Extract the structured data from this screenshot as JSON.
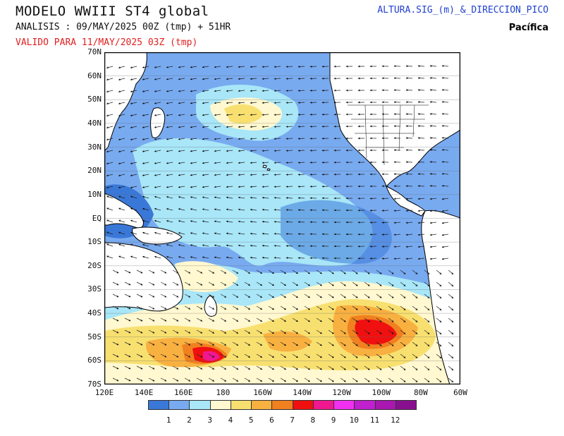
{
  "header": {
    "title": "MODELO WWIII ST4 global",
    "analysis": "ANALISIS : 09/MAY/2025 00Z  (tmp) + 51HR",
    "valid": "VALIDO PARA  11/MAY/2025 03Z  (tmp)",
    "variable": "ALTURA.SIG_(m)_&_DIRECCION_PICO",
    "region": "Pacífica"
  },
  "axes": {
    "lat_labels": [
      "70N",
      "60N",
      "50N",
      "40N",
      "30N",
      "20N",
      "10N",
      "EQ",
      "10S",
      "20S",
      "30S",
      "40S",
      "50S",
      "60S",
      "70S"
    ],
    "lon_labels": [
      "120E",
      "140E",
      "160E",
      "180",
      "160W",
      "140W",
      "120W",
      "100W",
      "80W",
      "60W"
    ]
  },
  "colorbar": {
    "labels": [
      "1",
      "2",
      "3",
      "4",
      "5",
      "6",
      "7",
      "8",
      "9",
      "10",
      "11",
      "12"
    ],
    "colors": [
      "#3a78d8",
      "#78aaf0",
      "#a8e6f8",
      "#fff8d0",
      "#f8e070",
      "#f8b040",
      "#f08020",
      "#f01010",
      "#f01890",
      "#f030f0",
      "#c020d0",
      "#a818b0",
      "#881090"
    ]
  },
  "map_colors": {
    "land": "#ffffff",
    "ocean_base": "#78aaf0"
  }
}
